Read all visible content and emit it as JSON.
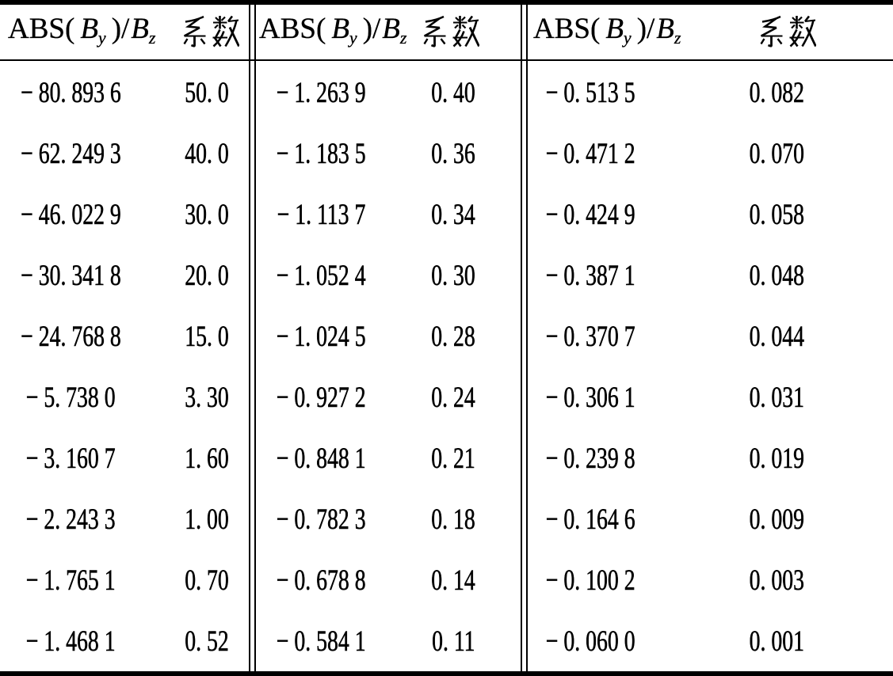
{
  "table": {
    "header": {
      "open": "ABS(",
      "b": "B",
      "sub_y": "y",
      "close": ")",
      "slash": "/",
      "b2": "B",
      "sub_z": "z",
      "coef_label": "系数"
    },
    "groups": [
      {
        "rows": [
          {
            "abs": "− 80. 893 6",
            "coef": "50. 0"
          },
          {
            "abs": "− 62. 249 3",
            "coef": "40. 0"
          },
          {
            "abs": "− 46. 022 9",
            "coef": "30. 0"
          },
          {
            "abs": "− 30. 341 8",
            "coef": "20. 0"
          },
          {
            "abs": "− 24. 768 8",
            "coef": "15. 0"
          },
          {
            "abs": "− 5. 738 0",
            "coef": "3. 30"
          },
          {
            "abs": "− 3. 160 7",
            "coef": "1. 60"
          },
          {
            "abs": "− 2. 243 3",
            "coef": "1. 00"
          },
          {
            "abs": "− 1. 765 1",
            "coef": "0. 70"
          },
          {
            "abs": "− 1. 468 1",
            "coef": "0. 52"
          }
        ]
      },
      {
        "rows": [
          {
            "abs": "− 1. 263 9",
            "coef": "0. 40"
          },
          {
            "abs": "− 1. 183 5",
            "coef": "0. 36"
          },
          {
            "abs": "− 1. 113 7",
            "coef": "0. 34"
          },
          {
            "abs": "− 1. 052 4",
            "coef": "0. 30"
          },
          {
            "abs": "− 1. 024 5",
            "coef": "0. 28"
          },
          {
            "abs": "− 0. 927 2",
            "coef": "0. 24"
          },
          {
            "abs": "− 0. 848 1",
            "coef": "0. 21"
          },
          {
            "abs": "− 0. 782 3",
            "coef": "0. 18"
          },
          {
            "abs": "− 0. 678 8",
            "coef": "0. 14"
          },
          {
            "abs": "− 0. 584 1",
            "coef": "0. 11"
          }
        ]
      },
      {
        "rows": [
          {
            "abs": "− 0. 513 5",
            "coef": "0. 082"
          },
          {
            "abs": "− 0. 471 2",
            "coef": "0. 070"
          },
          {
            "abs": "− 0. 424 9",
            "coef": "0. 058"
          },
          {
            "abs": "− 0. 387 1",
            "coef": "0. 048"
          },
          {
            "abs": "− 0. 370 7",
            "coef": "0. 044"
          },
          {
            "abs": "− 0. 306 1",
            "coef": "0. 031"
          },
          {
            "abs": "− 0. 239 8",
            "coef": "0. 019"
          },
          {
            "abs": "− 0. 164 6",
            "coef": "0. 009"
          },
          {
            "abs": "− 0. 100 2",
            "coef": "0. 003"
          },
          {
            "abs": "− 0. 060 0",
            "coef": "0. 001"
          }
        ]
      }
    ]
  }
}
